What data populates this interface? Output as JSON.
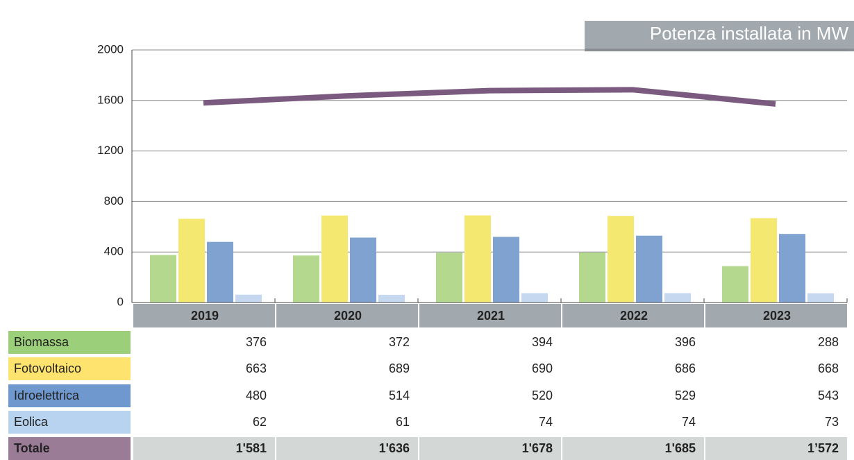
{
  "chart_data": {
    "type": "bar",
    "title": "Potenza installata in MW",
    "categories": [
      "2019",
      "2020",
      "2021",
      "2022",
      "2023"
    ],
    "series": [
      {
        "name": "Biomassa",
        "color": "#b3d88e",
        "legend_color": "#9ccf7a",
        "values": [
          376,
          372,
          394,
          396,
          288
        ]
      },
      {
        "name": "Fotovoltaico",
        "color": "#f5e870",
        "legend_color": "#ffe36f",
        "values": [
          663,
          689,
          690,
          686,
          668
        ]
      },
      {
        "name": "Idroelettrica",
        "color": "#7fa2d0",
        "legend_color": "#6f98cf",
        "values": [
          480,
          514,
          520,
          529,
          543
        ]
      },
      {
        "name": "Eolica",
        "color": "#c5d8f0",
        "legend_color": "#b8d3ef",
        "values": [
          62,
          61,
          74,
          74,
          73
        ]
      },
      {
        "name": "Totale",
        "type": "line",
        "color": "#7b5a7f",
        "legend_color": "#9a7c97",
        "values": [
          1581,
          1636,
          1678,
          1685,
          1572
        ],
        "value_labels": [
          "1'581",
          "1'636",
          "1'678",
          "1'685",
          "1’572"
        ]
      }
    ],
    "ylim": [
      0,
      2000
    ],
    "yticks": [
      0,
      400,
      800,
      1200,
      1600,
      2000
    ],
    "grid": true
  }
}
